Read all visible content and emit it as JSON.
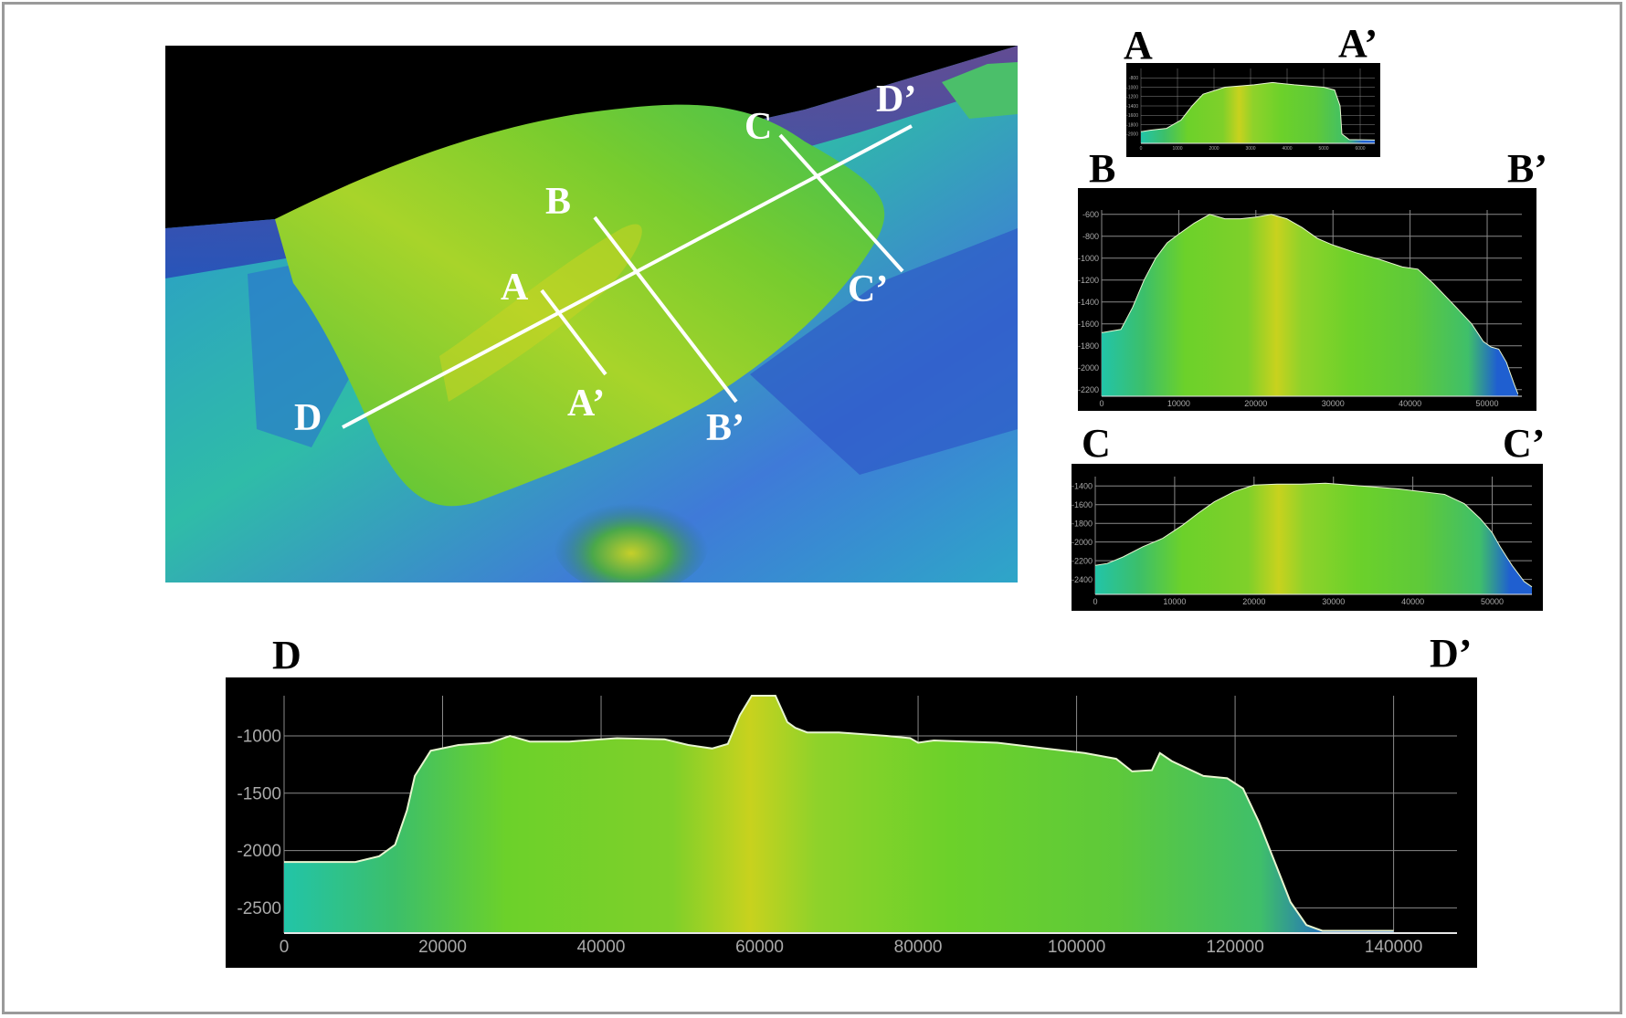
{
  "colors": {
    "deep": "#3a1f6e",
    "mid": "#1f5fd0",
    "shallow": "#22c4a8",
    "plateau": "#6cd12a",
    "summit": "#c8d21e",
    "frame": "#9a9a9a",
    "grid": "#8a8a8a",
    "tick_text": "#a9a9a9"
  },
  "map": {
    "labels": {
      "A": "A",
      "A_prime": "A’",
      "B": "B",
      "B_prime": "B’",
      "C": "C",
      "C_prime": "C’",
      "D": "D",
      "D_prime": "D’"
    }
  },
  "profiles": {
    "A": {
      "start": "A",
      "end": "A’"
    },
    "B": {
      "start": "B",
      "end": "B’"
    },
    "C": {
      "start": "C",
      "end": "C’"
    },
    "D": {
      "start": "D",
      "end": "D’"
    }
  },
  "chart_data": [
    {
      "type": "area",
      "name": "A–A′",
      "title": "",
      "xlabel": "",
      "ylabel": "",
      "xlim": [
        0,
        6400
      ],
      "ylim": [
        -2200,
        -600
      ],
      "x": [
        0,
        250,
        700,
        1100,
        1400,
        1700,
        2300,
        3100,
        3600,
        4200,
        5000,
        5300,
        5450,
        5500,
        5700,
        6400
      ],
      "y": [
        -1950,
        -1920,
        -1880,
        -1700,
        -1400,
        -1150,
        -1000,
        -950,
        -900,
        -950,
        -1000,
        -1060,
        -1400,
        -2000,
        -2120,
        -2130
      ],
      "yticks": [
        -800,
        -1000,
        -1200,
        -1400,
        -1600,
        -1800,
        -2000
      ],
      "xticks": [
        0,
        1000,
        2000,
        3000,
        4000,
        5000,
        6000
      ],
      "grid": true
    },
    {
      "type": "area",
      "name": "B–B′",
      "title": "",
      "xlabel": "",
      "ylabel": "",
      "xlim": [
        0,
        54500
      ],
      "ylim": [
        -2260,
        -560
      ],
      "x": [
        0,
        2500,
        4000,
        5500,
        7000,
        8500,
        10000,
        12000,
        14000,
        16000,
        18000,
        20000,
        22000,
        24000,
        26000,
        28000,
        30000,
        33000,
        36000,
        39000,
        41000,
        43000,
        46000,
        48000,
        49500,
        50500,
        51500,
        52500,
        53000,
        53500,
        54000
      ],
      "y": [
        -1680,
        -1650,
        -1450,
        -1200,
        -1000,
        -860,
        -780,
        -680,
        -600,
        -640,
        -640,
        -625,
        -600,
        -640,
        -720,
        -820,
        -880,
        -950,
        -1010,
        -1080,
        -1100,
        -1230,
        -1450,
        -1600,
        -1760,
        -1810,
        -1830,
        -1950,
        -2050,
        -2150,
        -2240
      ],
      "yticks": [
        -600,
        -800,
        -1000,
        -1200,
        -1400,
        -1600,
        -1800,
        -2000,
        -2200
      ],
      "xticks": [
        0,
        10000,
        20000,
        30000,
        40000,
        50000
      ],
      "grid": true
    },
    {
      "type": "area",
      "name": "C–C′",
      "title": "",
      "xlabel": "",
      "ylabel": "",
      "xlim": [
        0,
        55000
      ],
      "ylim": [
        -2560,
        -1300
      ],
      "x": [
        0,
        1500,
        3500,
        6000,
        8500,
        11000,
        13000,
        15000,
        17500,
        20000,
        23000,
        26000,
        29000,
        32000,
        35000,
        38000,
        41000,
        44000,
        46500,
        48500,
        50000,
        51000,
        52500,
        54000,
        55000
      ],
      "y": [
        -2250,
        -2230,
        -2160,
        -2050,
        -1960,
        -1820,
        -1690,
        -1570,
        -1460,
        -1390,
        -1380,
        -1380,
        -1370,
        -1390,
        -1410,
        -1430,
        -1460,
        -1490,
        -1590,
        -1750,
        -1900,
        -2050,
        -2250,
        -2420,
        -2480
      ],
      "yticks": [
        -1400,
        -1600,
        -1800,
        -2000,
        -2200,
        -2400
      ],
      "xticks": [
        0,
        10000,
        20000,
        30000,
        40000,
        50000
      ],
      "grid": true
    },
    {
      "type": "area",
      "name": "D–D′",
      "title": "",
      "xlabel": "",
      "ylabel": "",
      "xlim": [
        0,
        148000
      ],
      "ylim": [
        -2720,
        -650
      ],
      "x": [
        0,
        5000,
        9000,
        12000,
        14000,
        15500,
        16500,
        18500,
        22000,
        26000,
        28500,
        31000,
        36000,
        42000,
        48000,
        51000,
        54000,
        56000,
        57500,
        59000,
        62000,
        63500,
        64500,
        66000,
        70000,
        76000,
        79000,
        80000,
        82000,
        90000,
        96000,
        101000,
        105000,
        107000,
        109500,
        110500,
        112000,
        116000,
        119000,
        121000,
        123000,
        125000,
        127000,
        129000,
        131000,
        134000,
        137000,
        140000
      ],
      "y": [
        -2100,
        -2100,
        -2100,
        -2050,
        -1950,
        -1650,
        -1350,
        -1130,
        -1080,
        -1060,
        -1000,
        -1050,
        -1050,
        -1020,
        -1030,
        -1080,
        -1110,
        -1070,
        -820,
        -650,
        -650,
        -880,
        -930,
        -970,
        -970,
        -1000,
        -1020,
        -1060,
        -1040,
        -1060,
        -1110,
        -1150,
        -1200,
        -1310,
        -1300,
        -1150,
        -1220,
        -1350,
        -1370,
        -1460,
        -1750,
        -2100,
        -2450,
        -2650,
        -2700,
        -2700,
        -2700,
        -2700
      ],
      "yticks": [
        -1000,
        -1500,
        -2000,
        -2500
      ],
      "xticks": [
        0,
        20000,
        40000,
        60000,
        80000,
        100000,
        120000,
        140000
      ],
      "grid": true
    }
  ]
}
